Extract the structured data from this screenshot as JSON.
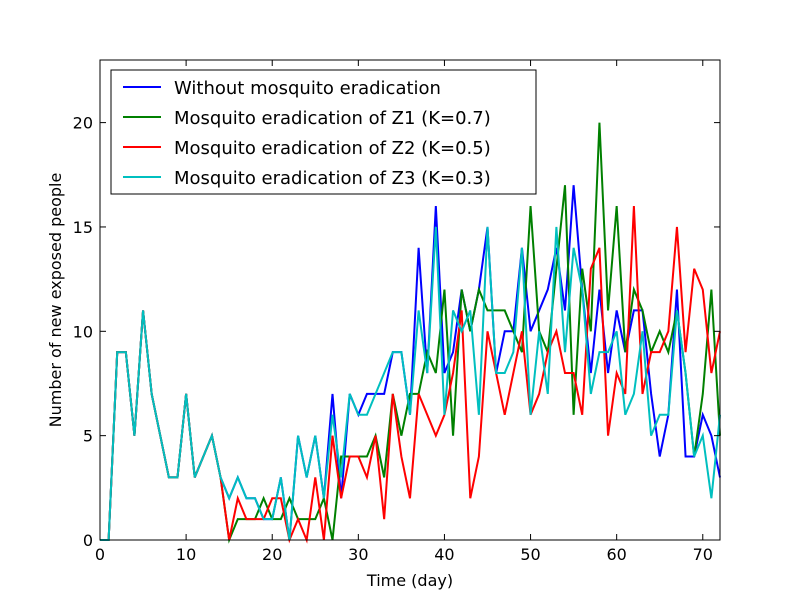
{
  "chart_data": {
    "type": "line",
    "x_label": "Time (day)",
    "y_label": "Number of new exposed people",
    "x": [
      0,
      1,
      2,
      3,
      4,
      5,
      6,
      7,
      8,
      9,
      10,
      11,
      12,
      13,
      14,
      15,
      16,
      17,
      18,
      19,
      20,
      21,
      22,
      23,
      24,
      25,
      26,
      27,
      28,
      29,
      30,
      31,
      32,
      33,
      34,
      35,
      36,
      37,
      38,
      39,
      40,
      41,
      42,
      43,
      44,
      45,
      46,
      47,
      48,
      49,
      50,
      51,
      52,
      53,
      54,
      55,
      56,
      57,
      58,
      59,
      60,
      61,
      62,
      63,
      64,
      65,
      66,
      67,
      68,
      69,
      70,
      71,
      72
    ],
    "series": [
      {
        "name": "Without mosquito eradication",
        "color": "#0000ff",
        "values": [
          0,
          0,
          9,
          9,
          5,
          11,
          7,
          5,
          3,
          3,
          7,
          3,
          4,
          5,
          3,
          2,
          3,
          2,
          2,
          1,
          1,
          3,
          0,
          5,
          3,
          5,
          2,
          7,
          2,
          7,
          6,
          7,
          7,
          7,
          9,
          9,
          6,
          14,
          8,
          16,
          8,
          9,
          12,
          10,
          12,
          15,
          8,
          10,
          10,
          14,
          10,
          11,
          12,
          14,
          11,
          17,
          12,
          8,
          12,
          8,
          11,
          9,
          11,
          11,
          7,
          4,
          6,
          12,
          4,
          4,
          6,
          5,
          3
        ]
      },
      {
        "name": "Mosquito eradication of Z1 (K=0.7)",
        "color": "#008000",
        "values": [
          0,
          0,
          9,
          9,
          5,
          11,
          7,
          5,
          3,
          3,
          7,
          3,
          4,
          5,
          3,
          0,
          1,
          1,
          1,
          2,
          1,
          1,
          2,
          1,
          1,
          1,
          2,
          0,
          4,
          4,
          4,
          4,
          5,
          3,
          7,
          5,
          7,
          7,
          9,
          8,
          12,
          5,
          12,
          10,
          12,
          11,
          11,
          11,
          10,
          9,
          16,
          10,
          9,
          13,
          17,
          6,
          13,
          10,
          20,
          11,
          16,
          9,
          12,
          11,
          9,
          10,
          9,
          11,
          8,
          4,
          7,
          12,
          5
        ]
      },
      {
        "name": "Mosquito eradication of Z2 (K=0.5)",
        "color": "#ff0000",
        "values": [
          0,
          0,
          9,
          9,
          5,
          11,
          7,
          5,
          3,
          3,
          7,
          3,
          4,
          5,
          3,
          0,
          2,
          1,
          1,
          1,
          2,
          2,
          0,
          1,
          0,
          3,
          0,
          5,
          2,
          4,
          4,
          3,
          5,
          1,
          7,
          4,
          2,
          7,
          6,
          5,
          6,
          8,
          11,
          2,
          4,
          10,
          8,
          6,
          8,
          10,
          6,
          7,
          9,
          10,
          8,
          8,
          6,
          13,
          14,
          5,
          8,
          7,
          16,
          7,
          9,
          9,
          10,
          15,
          9,
          13,
          12,
          8,
          10
        ]
      },
      {
        "name": "Mosquito eradication of Z3 (K=0.3)",
        "color": "#00bfbf",
        "values": [
          0,
          0,
          9,
          9,
          5,
          11,
          7,
          5,
          3,
          3,
          7,
          3,
          4,
          5,
          3,
          2,
          3,
          2,
          2,
          1,
          1,
          3,
          0,
          5,
          3,
          5,
          2,
          6,
          3,
          7,
          6,
          6,
          7,
          8,
          9,
          9,
          6,
          11,
          8,
          15,
          6,
          11,
          10,
          11,
          6,
          15,
          8,
          8,
          9,
          14,
          6,
          10,
          7,
          15,
          9,
          14,
          12,
          7,
          9,
          9,
          10,
          6,
          7,
          10,
          5,
          6,
          6,
          11,
          8,
          4,
          5,
          2,
          6
        ]
      }
    ],
    "xlim": [
      0,
      72
    ],
    "ylim": [
      0,
      23
    ],
    "xticks": [
      0,
      10,
      20,
      30,
      40,
      50,
      60,
      70
    ],
    "yticks": [
      0,
      5,
      10,
      15,
      20
    ],
    "legend": "upper left"
  }
}
